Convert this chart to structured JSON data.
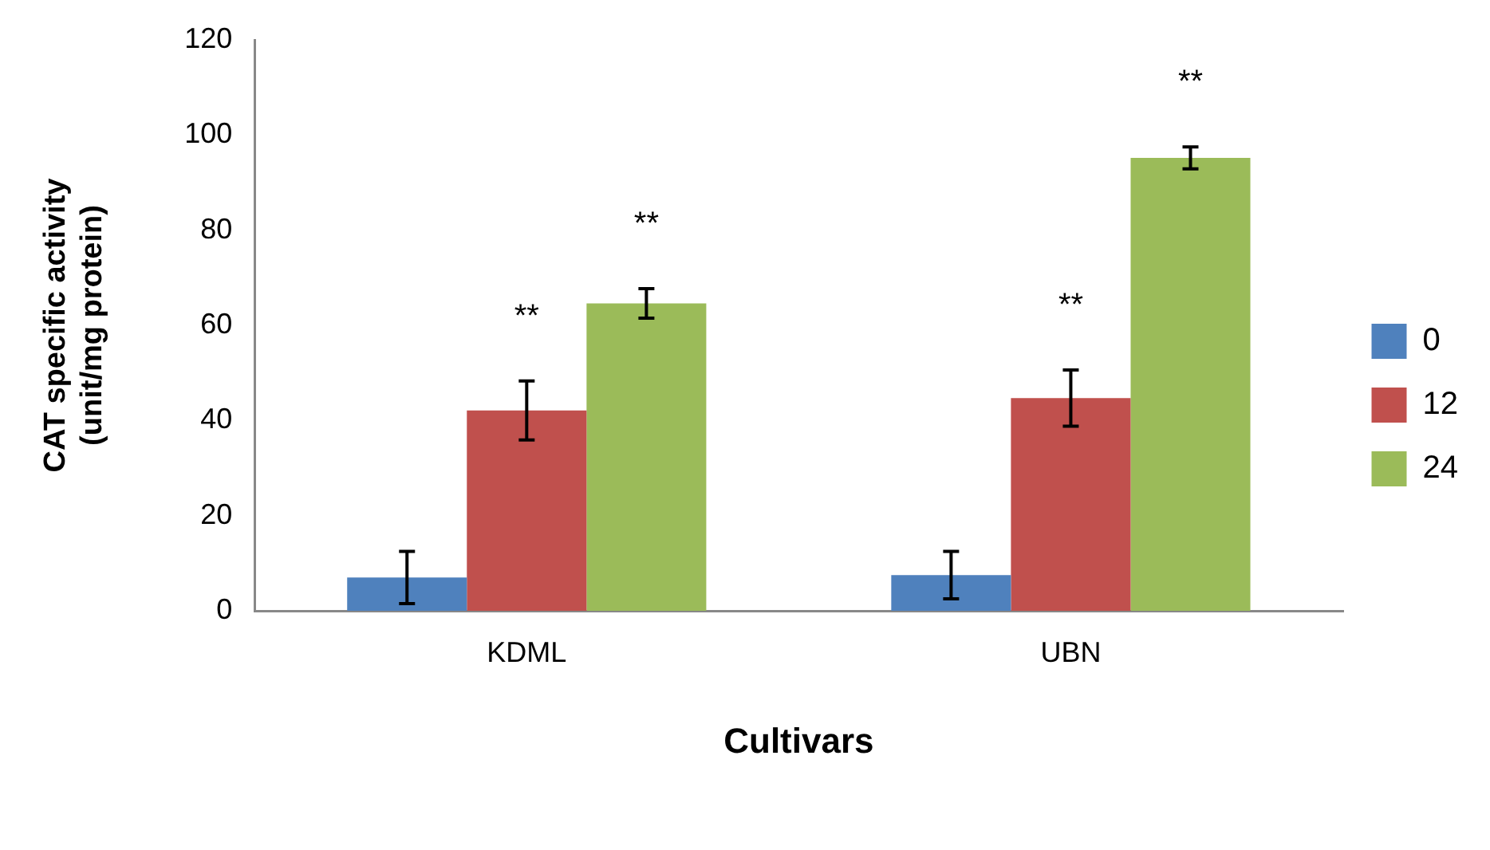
{
  "chart_data": {
    "type": "bar",
    "xlabel": "Cultivars",
    "ylabel": "CAT specific activity\n(unit/mg protein)",
    "categories": [
      "KDML",
      "UBN"
    ],
    "series": [
      {
        "name": "0",
        "color": "#4f81bd",
        "values": [
          7.0,
          7.5
        ],
        "errors": [
          5.5,
          5
        ]
      },
      {
        "name": "12",
        "color": "#c0504d",
        "values": [
          42.1,
          44.7
        ],
        "errors": [
          6.2,
          5.9
        ]
      },
      {
        "name": "24",
        "color": "#9bbb59",
        "values": [
          64.6,
          95.2
        ],
        "errors": [
          3.1,
          2.3
        ]
      }
    ],
    "ylim": [
      0,
      120
    ],
    "yticks": [
      0,
      20,
      40,
      60,
      80,
      100,
      120
    ],
    "grid": false,
    "legend": "right",
    "annotations": [
      "**",
      "**",
      "**",
      "**"
    ]
  }
}
